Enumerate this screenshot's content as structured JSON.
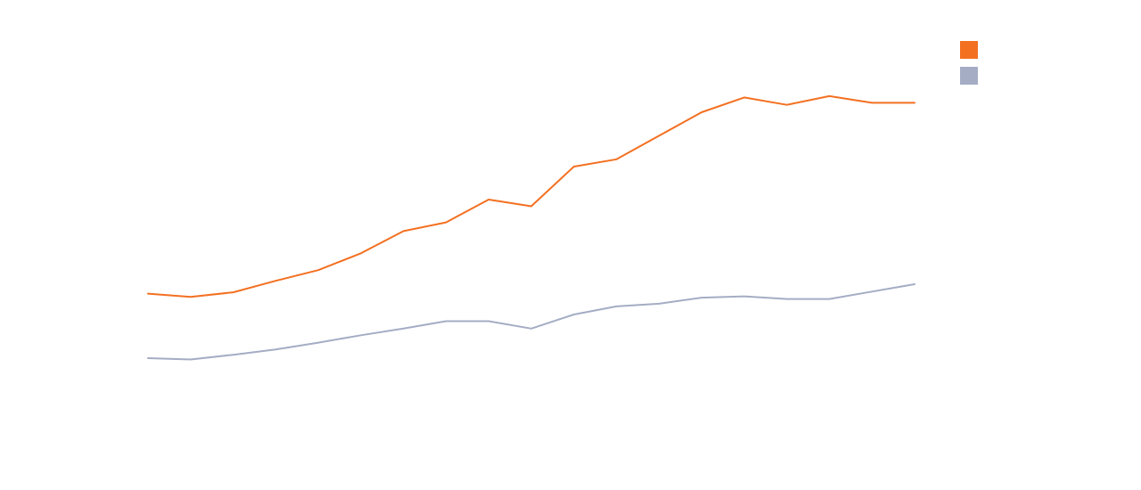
{
  "chart_data": {
    "type": "line",
    "x": [
      1,
      2,
      3,
      4,
      5,
      6,
      7,
      8,
      9,
      10,
      11,
      12,
      13,
      14,
      15,
      16,
      17,
      18,
      19
    ],
    "series": [
      {
        "color": "#f37021",
        "legend_swatch": "square",
        "values": [
          47.6,
          47.1,
          47.8,
          49.5,
          51.1,
          53.6,
          56.9,
          58.2,
          61.6,
          60.6,
          66.5,
          67.6,
          71.1,
          74.6,
          76.8,
          75.7,
          77.0,
          76.0,
          76.0
        ]
      },
      {
        "color": "#a4adc4",
        "legend_swatch": "square",
        "values": [
          38.0,
          37.8,
          38.5,
          39.3,
          40.3,
          41.4,
          42.4,
          43.5,
          43.5,
          42.4,
          44.5,
          45.7,
          46.1,
          47.0,
          47.2,
          46.8,
          46.8,
          47.9,
          49.0
        ]
      }
    ],
    "ylim": [
      25,
      86
    ],
    "grid": false,
    "axes_visible": false,
    "legend_position": "top-right"
  }
}
